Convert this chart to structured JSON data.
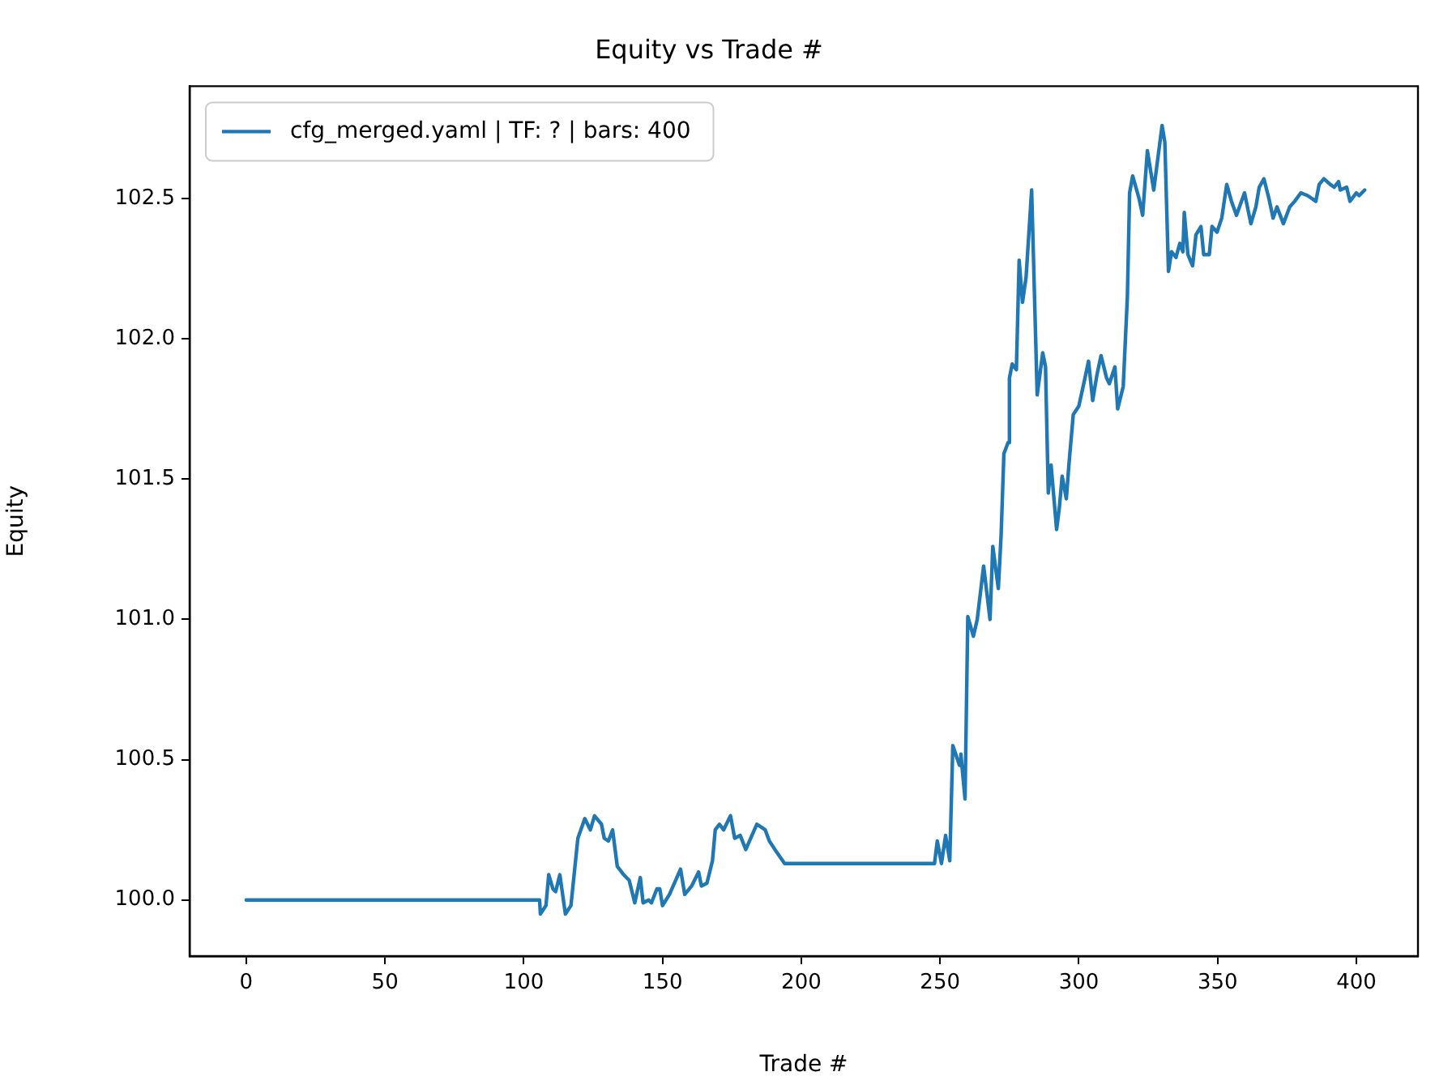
{
  "chart_data": {
    "type": "line",
    "title": "Equity vs Trade #",
    "xlabel": "Trade #",
    "ylabel": "Equity",
    "legend": "top left",
    "grid": false,
    "marker": "none",
    "line_style": "solid",
    "xlim": [
      -20.4,
      422.2
    ],
    "xticks": [
      0,
      50,
      100,
      150,
      200,
      250,
      300,
      350,
      400
    ],
    "ylim": [
      99.8,
      102.9
    ],
    "yticks": [
      {
        "value": 100,
        "label": "100.0"
      },
      {
        "value": 100.5,
        "label": "100.5"
      },
      {
        "value": 101,
        "label": "101.0"
      },
      {
        "value": 101.5,
        "label": "101.5"
      },
      {
        "value": 102,
        "label": "102.0"
      },
      {
        "value": 102.5,
        "label": "102.5"
      }
    ],
    "series": [
      {
        "name": "cfg_merged.yaml | TF: ? | bars: 400",
        "color": "#1f77b4",
        "x": [
          0,
          105.7,
          106,
          108,
          109,
          110.5,
          111.5,
          113,
          115,
          117,
          119.5,
          122,
          124,
          125.5,
          128,
          129,
          130.5,
          132,
          133.7,
          136,
          138,
          140,
          142,
          143,
          145,
          146,
          148,
          149,
          150,
          152.5,
          156.5,
          158,
          160.5,
          163,
          164,
          166,
          168,
          169,
          170.5,
          172,
          174.5,
          176,
          178,
          180,
          184,
          187,
          188.5,
          190.5,
          194,
          248,
          249,
          250.5,
          252,
          253.5,
          254.6,
          257,
          257.5,
          259,
          260,
          262,
          263.4,
          265.7,
          268,
          269,
          271,
          272,
          273,
          274.5,
          275,
          276,
          277.5,
          278.5,
          279.7,
          281,
          283,
          285,
          287,
          288,
          289,
          290,
          292,
          293,
          294,
          295.5,
          296.5,
          298,
          300,
          302,
          303.5,
          305,
          306.5,
          308,
          310,
          311,
          313,
          314,
          316,
          317.5,
          318.3,
          319.4,
          321.7,
          323,
          324.7,
          327,
          330,
          331,
          332.3,
          333.4,
          335,
          336.4,
          337.5,
          338,
          339.3,
          341,
          342.2,
          344,
          345,
          347,
          348,
          349.8,
          351.5,
          353.3,
          355,
          356.8,
          359.7,
          362,
          363.8,
          365,
          366.7,
          368.5,
          370,
          371.4,
          373.7,
          376,
          377.8,
          380,
          382.5,
          385.4,
          386.6,
          388.3,
          390.6,
          392,
          393.6,
          394.2,
          396.5,
          397.7,
          400,
          401,
          403
        ],
        "values": [
          100,
          100,
          99.95,
          99.98,
          100.09,
          100.04,
          100.03,
          100.09,
          99.95,
          99.98,
          100.22,
          100.29,
          100.25,
          100.3,
          100.27,
          100.22,
          100.21,
          100.25,
          100.12,
          100.09,
          100.07,
          99.99,
          100.08,
          99.99,
          100,
          99.99,
          100.04,
          100.04,
          99.98,
          100.02,
          100.11,
          100.02,
          100.05,
          100.1,
          100.05,
          100.06,
          100.14,
          100.25,
          100.27,
          100.25,
          100.3,
          100.22,
          100.23,
          100.18,
          100.27,
          100.25,
          100.21,
          100.18,
          100.13,
          100.13,
          100.21,
          100.13,
          100.23,
          100.14,
          100.55,
          100.48,
          100.52,
          100.36,
          101.01,
          100.94,
          101,
          101.19,
          101,
          101.26,
          101.11,
          101.3,
          101.59,
          101.63,
          101.86,
          101.91,
          101.89,
          102.28,
          102.13,
          102.22,
          102.53,
          101.8,
          101.95,
          101.9,
          101.45,
          101.55,
          101.32,
          101.4,
          101.51,
          101.43,
          101.56,
          101.73,
          101.76,
          101.85,
          101.92,
          101.78,
          101.87,
          101.94,
          101.86,
          101.84,
          101.9,
          101.75,
          101.83,
          102.15,
          102.52,
          102.58,
          102.5,
          102.44,
          102.67,
          102.53,
          102.76,
          102.7,
          102.24,
          102.31,
          102.29,
          102.34,
          102.31,
          102.45,
          102.3,
          102.26,
          102.37,
          102.4,
          102.3,
          102.3,
          102.4,
          102.38,
          102.43,
          102.55,
          102.49,
          102.44,
          102.52,
          102.41,
          102.47,
          102.54,
          102.57,
          102.5,
          102.43,
          102.47,
          102.41,
          102.47,
          102.49,
          102.52,
          102.51,
          102.49,
          102.55,
          102.57,
          102.55,
          102.54,
          102.56,
          102.53,
          102.54,
          102.49,
          102.52,
          102.51,
          102.53
        ]
      }
    ]
  }
}
